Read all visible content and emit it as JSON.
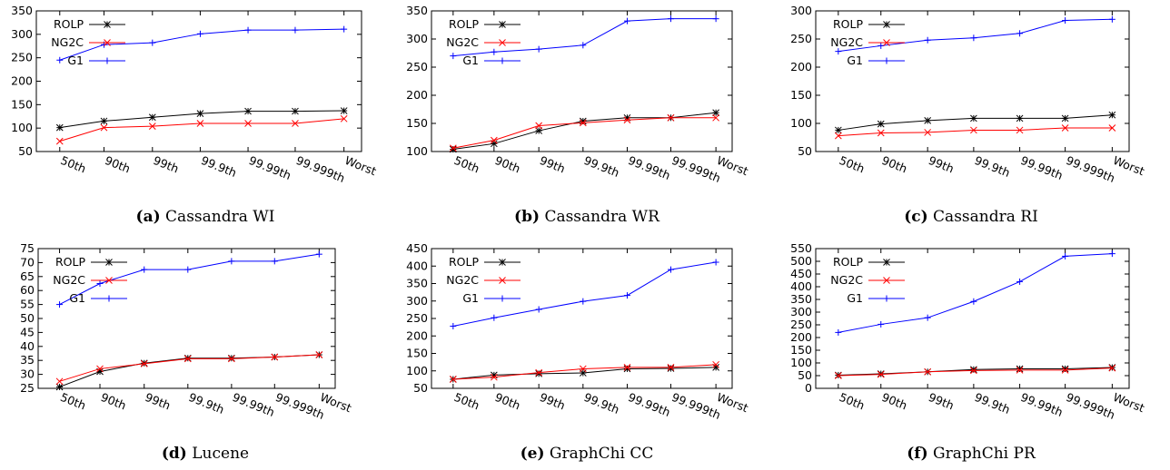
{
  "series_colors": {
    "ROLP": "#000000",
    "NG2C": "#ff0000",
    "G1": "#0000ff"
  },
  "chart_data": [
    {
      "type": "line",
      "caption_label": "(a)",
      "caption_title": "Cassandra WI",
      "categories": [
        "50th",
        "90th",
        "99th",
        "99.9th",
        "99.99th",
        "99.999th",
        "Worst"
      ],
      "yticks": [
        50,
        100,
        150,
        200,
        250,
        300,
        350
      ],
      "ylim": [
        50,
        350
      ],
      "legend_position": "top-left",
      "series": [
        {
          "name": "ROLP",
          "marker": "star",
          "values": [
            101,
            115,
            123,
            131,
            136,
            136,
            137
          ]
        },
        {
          "name": "NG2C",
          "marker": "x",
          "values": [
            72,
            101,
            104,
            110,
            110,
            110,
            120
          ]
        },
        {
          "name": "G1",
          "marker": "plus",
          "values": [
            245,
            278,
            282,
            301,
            309,
            309,
            311
          ]
        }
      ]
    },
    {
      "type": "line",
      "caption_label": "(b)",
      "caption_title": "Cassandra WR",
      "categories": [
        "50th",
        "90th",
        "99th",
        "99.9th",
        "99.99th",
        "99.999th",
        "Worst"
      ],
      "yticks": [
        100,
        150,
        200,
        250,
        300,
        350
      ],
      "ylim": [
        100,
        350
      ],
      "legend_position": "top-left",
      "series": [
        {
          "name": "ROLP",
          "marker": "star",
          "values": [
            104,
            114,
            137,
            154,
            160,
            160,
            169
          ]
        },
        {
          "name": "NG2C",
          "marker": "x",
          "values": [
            106,
            120,
            146,
            151,
            156,
            160,
            160
          ]
        },
        {
          "name": "G1",
          "marker": "plus",
          "values": [
            270,
            277,
            282,
            289,
            332,
            336,
            336
          ]
        }
      ]
    },
    {
      "type": "line",
      "caption_label": "(c)",
      "caption_title": "Cassandra RI",
      "categories": [
        "50th",
        "90th",
        "99th",
        "99.9th",
        "99.99th",
        "99.999th",
        "Worst"
      ],
      "yticks": [
        50,
        100,
        150,
        200,
        250,
        300
      ],
      "ylim": [
        50,
        300
      ],
      "legend_position": "top-left",
      "series": [
        {
          "name": "ROLP",
          "marker": "star",
          "values": [
            88,
            99,
            105,
            109,
            109,
            109,
            115
          ]
        },
        {
          "name": "NG2C",
          "marker": "x",
          "values": [
            78,
            83,
            84,
            88,
            88,
            92,
            92
          ]
        },
        {
          "name": "G1",
          "marker": "plus",
          "values": [
            228,
            238,
            248,
            252,
            260,
            283,
            285
          ]
        }
      ]
    },
    {
      "type": "line",
      "caption_label": "(d)",
      "caption_title": "Lucene",
      "categories": [
        "50th",
        "90th",
        "99th",
        "99.9th",
        "99.99th",
        "99.999th",
        "Worst"
      ],
      "yticks": [
        25,
        30,
        35,
        40,
        45,
        50,
        55,
        60,
        65,
        70,
        75
      ],
      "ylim": [
        25,
        75
      ],
      "legend_position": "top-left",
      "series": [
        {
          "name": "ROLP",
          "marker": "star",
          "values": [
            25.5,
            31,
            34,
            35.8,
            35.8,
            36.2,
            37
          ]
        },
        {
          "name": "NG2C",
          "marker": "x",
          "values": [
            27.5,
            32,
            33.8,
            35.6,
            35.6,
            36.2,
            37
          ]
        },
        {
          "name": "G1",
          "marker": "plus",
          "values": [
            55,
            62.5,
            67.5,
            67.5,
            70.5,
            70.5,
            73
          ]
        }
      ]
    },
    {
      "type": "line",
      "caption_label": "(e)",
      "caption_title": "GraphChi CC",
      "categories": [
        "50th",
        "90th",
        "99th",
        "99.9th",
        "99.99th",
        "99.999th",
        "Worst"
      ],
      "yticks": [
        50,
        100,
        150,
        200,
        250,
        300,
        350,
        400,
        450
      ],
      "ylim": [
        50,
        450
      ],
      "legend_position": "top-left",
      "series": [
        {
          "name": "ROLP",
          "marker": "star",
          "values": [
            76,
            88,
            92,
            94,
            106,
            107,
            110
          ]
        },
        {
          "name": "NG2C",
          "marker": "x",
          "values": [
            76,
            82,
            95,
            106,
            110,
            110,
            118
          ]
        },
        {
          "name": "G1",
          "marker": "plus",
          "values": [
            228,
            252,
            276,
            299,
            316,
            390,
            411
          ]
        }
      ]
    },
    {
      "type": "line",
      "caption_label": "(f)",
      "caption_title": "GraphChi PR",
      "categories": [
        "50th",
        "90th",
        "99th",
        "99.9th",
        "99.99th",
        "99.999th",
        "Worst"
      ],
      "yticks": [
        0,
        50,
        100,
        150,
        200,
        250,
        300,
        350,
        400,
        450,
        500,
        550
      ],
      "ylim": [
        0,
        550
      ],
      "legend_position": "top-left",
      "series": [
        {
          "name": "ROLP",
          "marker": "star",
          "values": [
            52,
            57,
            65,
            74,
            77,
            77,
            82
          ]
        },
        {
          "name": "NG2C",
          "marker": "x",
          "values": [
            50,
            55,
            65,
            70,
            72,
            72,
            80
          ]
        },
        {
          "name": "G1",
          "marker": "plus",
          "values": [
            220,
            252,
            278,
            342,
            420,
            520,
            530
          ]
        }
      ]
    }
  ]
}
